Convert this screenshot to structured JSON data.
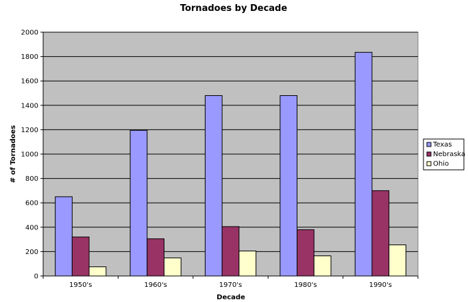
{
  "chart_data": {
    "type": "bar",
    "title": "Tornadoes by Decade",
    "xlabel": "Decade",
    "ylabel": "# of Tornadoes",
    "categories": [
      "1950's",
      "1960's",
      "1970's",
      "1980's",
      "1990's"
    ],
    "ylim": [
      0,
      2000
    ],
    "yticks": [
      0,
      200,
      400,
      600,
      800,
      1000,
      1200,
      1400,
      1600,
      1800,
      2000
    ],
    "grid": true,
    "legend_position": "right",
    "plot_background": "#c0c0c0",
    "series": [
      {
        "name": "Texas",
        "color": "#9999ff",
        "values": [
          650,
          1195,
          1480,
          1480,
          1835
        ]
      },
      {
        "name": "Nebraska",
        "color": "#993366",
        "values": [
          320,
          305,
          405,
          380,
          700
        ]
      },
      {
        "name": "Ohio",
        "color": "#ffffcc",
        "values": [
          75,
          148,
          205,
          165,
          255
        ]
      }
    ]
  }
}
